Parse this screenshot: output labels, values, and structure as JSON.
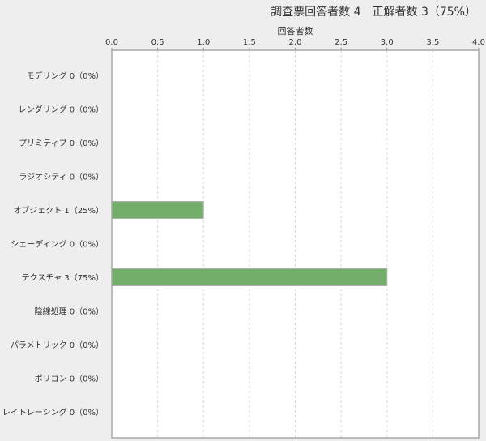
{
  "chart_data": {
    "type": "bar",
    "orientation": "horizontal",
    "title": "調査票回答者数 4　正解者数 3（75%）",
    "xlabel": "回答者数",
    "ylabel": "",
    "xlim": [
      0,
      4
    ],
    "xticks": [
      "0.0",
      "0.5",
      "1.0",
      "1.5",
      "2.0",
      "2.5",
      "3.0",
      "3.5",
      "4.0"
    ],
    "x_axis_position": "top",
    "grid": "vertical dashed",
    "bar_color": "#72ae6a",
    "categories": [
      "モデリング",
      "レンダリング",
      "プリミティブ",
      "ラジオシティ",
      "オブジェクト",
      "シェーディング",
      "テクスチャ",
      "陰線処理",
      "パラメトリック",
      "ポリゴン",
      "レイトレーシング"
    ],
    "category_labels": [
      "モデリング 0（0%）",
      "レンダリング 0（0%）",
      "プリミティブ 0（0%）",
      "ラジオシティ 0（0%）",
      "オブジェクト 1（25%）",
      "シェーディング 0（0%）",
      "テクスチャ 3（75%）",
      "陰線処理 0（0%）",
      "パラメトリック 0（0%）",
      "ポリゴン 0（0%）",
      "レイトレーシング 0（0%）"
    ],
    "values": [
      0,
      0,
      0,
      0,
      1,
      0,
      3,
      0,
      0,
      0,
      0
    ]
  }
}
